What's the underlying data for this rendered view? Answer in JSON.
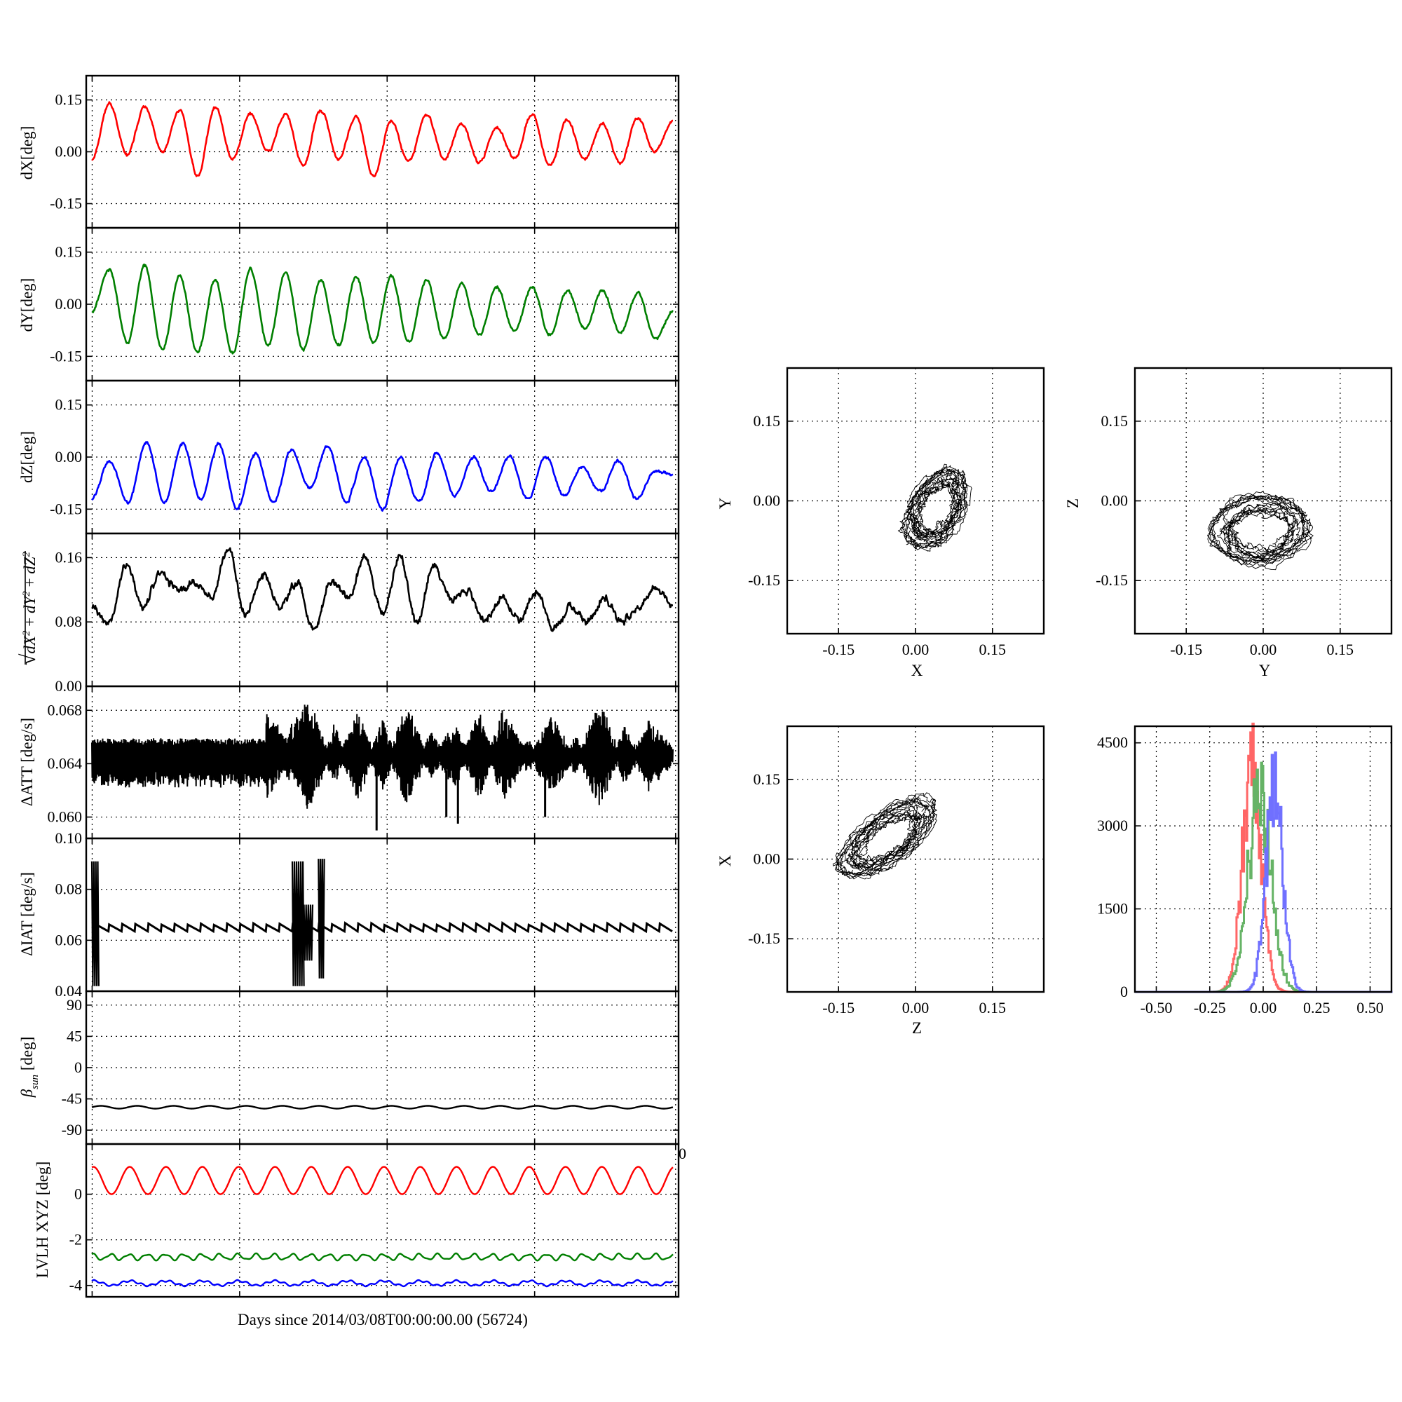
{
  "chart_data": [
    {
      "type": "line",
      "panel": "dX",
      "ylabel": "dX[deg]",
      "ylim": [
        -0.22,
        0.22
      ],
      "yticks": [
        "0.15",
        "0.00",
        "-0.15"
      ],
      "ytick_values": [
        0.15,
        0.0,
        -0.15
      ],
      "color": "#ff0000",
      "cycles": 16,
      "series": [
        {
          "values": [
            -0.02,
            0.14,
            -0.01,
            0.13,
            0.0,
            0.12,
            -0.07,
            0.13,
            -0.02,
            0.11,
            0.0,
            0.11,
            -0.04,
            0.12,
            -0.02,
            0.1,
            -0.07,
            0.09,
            -0.03,
            0.11,
            -0.02,
            0.08,
            -0.03,
            0.07,
            -0.02,
            0.11,
            -0.04,
            0.09,
            -0.02,
            0.08,
            -0.03,
            0.1,
            0.0,
            0.09
          ]
        }
      ]
    },
    {
      "type": "line",
      "panel": "dY",
      "ylabel": "dY[deg]",
      "ylim": [
        -0.22,
        0.22
      ],
      "yticks": [
        "0.15",
        "0.00",
        "-0.15"
      ],
      "ytick_values": [
        0.15,
        0.0,
        -0.15
      ],
      "color": "#007f00",
      "cycles": 16,
      "series": [
        {
          "values": [
            -0.02,
            0.1,
            -0.11,
            0.11,
            -0.13,
            0.08,
            -0.14,
            0.07,
            -0.14,
            0.1,
            -0.12,
            0.09,
            -0.13,
            0.07,
            -0.12,
            0.08,
            -0.11,
            0.08,
            -0.11,
            0.07,
            -0.1,
            0.06,
            -0.09,
            0.05,
            -0.08,
            0.05,
            -0.09,
            0.04,
            -0.07,
            0.04,
            -0.08,
            0.03,
            -0.1,
            -0.02
          ]
        }
      ]
    },
    {
      "type": "line",
      "panel": "dZ",
      "ylabel": "dZ[deg]",
      "ylim": [
        -0.22,
        0.22
      ],
      "yticks": [
        "0.15",
        "0.00",
        "-0.15"
      ],
      "ytick_values": [
        0.15,
        0.0,
        -0.15
      ],
      "color": "#0000ff",
      "cycles": 16,
      "series": [
        {
          "values": [
            -0.12,
            -0.01,
            -0.13,
            0.04,
            -0.13,
            0.04,
            -0.12,
            0.04,
            -0.15,
            0.01,
            -0.13,
            0.02,
            -0.09,
            0.03,
            -0.13,
            0.0,
            -0.15,
            0.0,
            -0.13,
            0.01,
            -0.11,
            0.0,
            -0.1,
            0.0,
            -0.12,
            0.0,
            -0.11,
            -0.03,
            -0.1,
            -0.01,
            -0.12,
            -0.04,
            -0.05
          ]
        }
      ]
    },
    {
      "type": "line",
      "panel": "norm",
      "ylabel_parts": {
        "sqrt": "√",
        "d1": "dX",
        "d2": "dY",
        "d3": "dZ",
        "plus": " + ",
        "exp": "2"
      },
      "ylim": [
        0.0,
        0.19
      ],
      "yticks": [
        "0.16",
        "0.08",
        "0.00"
      ],
      "ytick_values": [
        0.16,
        0.08,
        0.0
      ],
      "color": "#000000",
      "series": [
        {
          "values": [
            0.1,
            0.08,
            0.15,
            0.1,
            0.14,
            0.12,
            0.13,
            0.11,
            0.17,
            0.09,
            0.14,
            0.1,
            0.13,
            0.07,
            0.13,
            0.11,
            0.16,
            0.09,
            0.16,
            0.08,
            0.15,
            0.11,
            0.12,
            0.08,
            0.11,
            0.08,
            0.12,
            0.07,
            0.1,
            0.08,
            0.11,
            0.08,
            0.1,
            0.12,
            0.1
          ]
        }
      ]
    },
    {
      "type": "line",
      "panel": "dATT",
      "ylabel": "ΔATT [deg/s]",
      "ylim": [
        0.0584,
        0.0698
      ],
      "yticks": [
        "0.068",
        "0.064",
        "0.060"
      ],
      "ytick_values": [
        0.068,
        0.064,
        0.06
      ],
      "color": "#000000",
      "series": [
        {
          "values": [
            0.0645,
            0.0655,
            0.0625,
            0.0655,
            0.064,
            0.0663,
            0.0645,
            0.0675,
            0.0655,
            0.0682,
            0.063,
            0.0672,
            0.0625,
            0.0678,
            0.0635,
            0.0665,
            0.062,
            0.0675,
            0.064,
            0.0668,
            0.0638,
            0.0681,
            0.063,
            0.0665,
            0.0645
          ]
        }
      ],
      "spikes_down": [
        [
          0.49,
          0.059
        ],
        [
          0.61,
          0.06
        ],
        [
          0.63,
          0.0595
        ],
        [
          0.78,
          0.06
        ]
      ]
    },
    {
      "type": "line",
      "panel": "dIAT",
      "ylabel": "ΔIAT [deg/s]",
      "ylim": [
        0.04,
        0.1
      ],
      "yticks": [
        "0.10",
        "0.08",
        "0.06",
        "0.04"
      ],
      "ytick_values": [
        0.1,
        0.08,
        0.06,
        0.04
      ],
      "color": "#000000",
      "sawtooth": {
        "base": 0.0635,
        "peak": 0.066,
        "teeth": 44
      },
      "bursts": [
        [
          0.0,
          0.012,
          0.042,
          0.091
        ],
        [
          0.345,
          0.365,
          0.042,
          0.091
        ],
        [
          0.365,
          0.38,
          0.052,
          0.074
        ],
        [
          0.39,
          0.4,
          0.045,
          0.092
        ]
      ]
    },
    {
      "type": "line",
      "panel": "beta",
      "ylabel_parts": {
        "sym": "β",
        "sub": "sun",
        "unit": " [deg]"
      },
      "ylim": [
        -110,
        110
      ],
      "yticks": [
        "90",
        "45",
        "0",
        "-45",
        "-90"
      ],
      "ytick_values": [
        90,
        45,
        0,
        -45,
        -90
      ],
      "color": "#000000",
      "series": [
        {
          "mean": -57,
          "amp": 2,
          "cycles": 16
        }
      ]
    },
    {
      "type": "line",
      "panel": "lvlh",
      "ylabel": "LVLH XYZ [deg]",
      "ylim": [
        -4.5,
        2.2
      ],
      "yticks": [
        "0",
        "-2",
        "-4"
      ],
      "ytick_values": [
        0,
        -2,
        -4
      ],
      "top_edge_label": "0",
      "series": [
        {
          "color": "#ff0000",
          "mean": 0.6,
          "amp": 0.6,
          "cycles": 16
        },
        {
          "color": "#007f00",
          "mean": -2.75,
          "amp": 0.12,
          "cycles": 32
        },
        {
          "color": "#0000ff",
          "mean": -3.9,
          "amp": 0.1,
          "cycles": 16
        }
      ]
    },
    {
      "type": "scatter",
      "panel": "XY",
      "xlabel": "X",
      "ylabel": "Y",
      "xlim": [
        -0.25,
        0.25
      ],
      "ylim": [
        -0.25,
        0.25
      ],
      "ticks": [
        "-0.15",
        "0.00",
        "0.15"
      ],
      "tick_values": [
        -0.15,
        0.0,
        0.15
      ],
      "trajectory": {
        "cx": 0.04,
        "cy": -0.015,
        "r1": 0.082,
        "r2": 0.05,
        "rot_deg": 58,
        "loops": 16
      }
    },
    {
      "type": "scatter",
      "panel": "YZ",
      "xlabel": "Y",
      "ylabel": "Z",
      "xlim": [
        -0.25,
        0.25
      ],
      "ylim": [
        -0.25,
        0.25
      ],
      "ticks": [
        "-0.15",
        "0.00",
        "0.15"
      ],
      "tick_values": [
        -0.15,
        0.0,
        0.15
      ],
      "trajectory": {
        "cx": -0.005,
        "cy": -0.055,
        "r1": 0.095,
        "r2": 0.065,
        "rot_deg": 5,
        "loops": 16
      }
    },
    {
      "type": "scatter",
      "panel": "ZX",
      "xlabel": "Z",
      "ylabel": "X",
      "xlim": [
        -0.25,
        0.25
      ],
      "ylim": [
        -0.25,
        0.25
      ],
      "ticks": [
        "-0.15",
        "0.00",
        "0.15"
      ],
      "tick_values": [
        -0.15,
        0.0,
        0.15
      ],
      "trajectory": {
        "cx": -0.055,
        "cy": 0.04,
        "r1": 0.11,
        "r2": 0.045,
        "rot_deg": 35,
        "loops": 16
      }
    },
    {
      "type": "bar",
      "panel": "histogram",
      "xlim": [
        -0.6,
        0.6
      ],
      "ylim": [
        0,
        4800
      ],
      "xticks": [
        "-0.50",
        "-0.25",
        "0.00",
        "0.25",
        "0.50"
      ],
      "xtick_values": [
        -0.5,
        -0.25,
        0.0,
        0.25,
        0.5
      ],
      "yticks": [
        "4500",
        "3000",
        "1500",
        "0"
      ],
      "ytick_values": [
        4500,
        3000,
        1500,
        0
      ],
      "series": [
        {
          "color": "#ff6666",
          "center": -0.055,
          "sigma": 0.045,
          "peak": 4200
        },
        {
          "color": "#66b366",
          "center": -0.02,
          "sigma": 0.055,
          "peak": 3700
        },
        {
          "color": "#7070ff",
          "center": 0.05,
          "sigma": 0.04,
          "peak": 3800
        }
      ]
    }
  ],
  "xlabel": "Days since 2014/03/08T00:00:00.00 (56724)"
}
